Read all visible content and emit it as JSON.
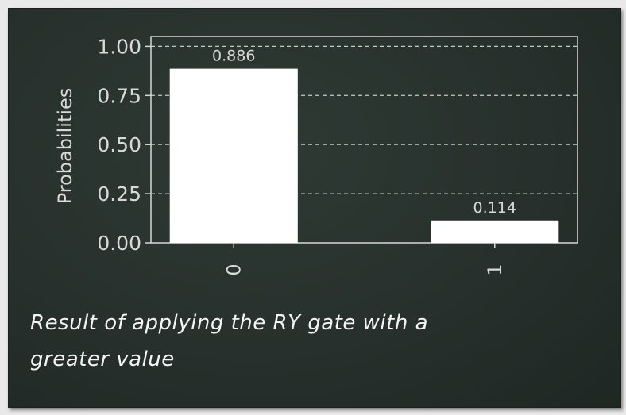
{
  "chart_data": {
    "type": "bar",
    "categories": [
      "0",
      "1"
    ],
    "values": [
      0.886,
      0.114
    ],
    "data_labels": [
      "0.886",
      "0.114"
    ],
    "title": "",
    "xlabel": "",
    "ylabel": "Probabilities",
    "ylim": [
      0,
      1.05
    ],
    "yticks": [
      "0.00",
      "0.25",
      "0.50",
      "0.75",
      "1.00"
    ],
    "ytick_values": [
      0,
      0.25,
      0.5,
      0.75,
      1.0
    ],
    "grid": true,
    "bar_color": "#ffffff",
    "grid_color": "#c8c8c8",
    "text_color": "#d9d9d9"
  },
  "caption": {
    "line1": "Result of applying the RY gate with a",
    "line2": "greater value"
  }
}
